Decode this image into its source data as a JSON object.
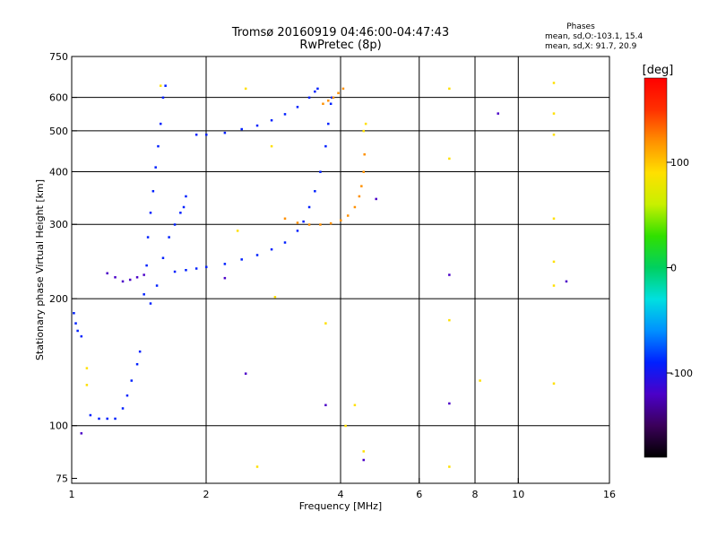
{
  "header": {
    "title_line1": "Tromsø 20160919 04:46:00-04:47:43",
    "title_line2": "RwPretec (8p)",
    "stats_title": "Phases",
    "stats_o": "mean, sd,O:-103.1, 15.4",
    "stats_x": "mean, sd,X:  91.7, 20.9"
  },
  "colorbar": {
    "label": "[deg]",
    "ticks": [
      {
        "value": 100,
        "label": "100"
      },
      {
        "value": 0,
        "label": "0"
      },
      {
        "value": -100,
        "label": "-100"
      }
    ],
    "range": [
      -180,
      180
    ],
    "gradient_stops": [
      "#000000",
      "#3b005a",
      "#4b00c8",
      "#0020ff",
      "#0090ff",
      "#00e0e0",
      "#00d060",
      "#30e000",
      "#c8f000",
      "#ffe000",
      "#ff9000",
      "#ff3000",
      "#ff0000"
    ]
  },
  "chart_data": {
    "type": "scatter",
    "title": "Tromsø 20160919 04:46:00-04:47:43",
    "subtitle": "RwPretec (8p)",
    "xlabel": "Frequency [MHz]",
    "ylabel": "Stationary phase Virtual Height [km]",
    "x_scale": "log",
    "y_scale": "log",
    "xlim": [
      1,
      16
    ],
    "ylim": [
      73,
      750
    ],
    "x_ticks": [
      {
        "value": 1,
        "label": "1"
      },
      {
        "value": 2,
        "label": "2"
      },
      {
        "value": 4,
        "label": "4"
      },
      {
        "value": 6,
        "label": "6"
      },
      {
        "value": 8,
        "label": "8"
      },
      {
        "value": 10,
        "label": "10"
      },
      {
        "value": 16,
        "label": "16"
      }
    ],
    "y_ticks": [
      {
        "value": 75,
        "label": "75"
      },
      {
        "value": 100,
        "label": "100"
      },
      {
        "value": 200,
        "label": "200"
      },
      {
        "value": 300,
        "label": "300"
      },
      {
        "value": 400,
        "label": "400"
      },
      {
        "value": 500,
        "label": "500"
      },
      {
        "value": 600,
        "label": "600"
      },
      {
        "value": 750,
        "label": "750"
      }
    ],
    "x_grid": [
      2,
      4,
      6,
      8,
      10
    ],
    "y_grid": [
      100,
      200,
      300,
      400,
      500,
      600
    ],
    "grid": true,
    "color_scale": "phase in degrees, -180 to 180",
    "series": [
      {
        "values": [
          [
            1.01,
            185
          ],
          [
            1.02,
            175
          ],
          [
            1.03,
            168
          ],
          [
            1.05,
            163
          ],
          [
            1.1,
            106
          ],
          [
            1.15,
            104
          ],
          [
            1.2,
            104
          ],
          [
            1.25,
            104
          ],
          [
            1.3,
            110
          ],
          [
            1.33,
            118
          ],
          [
            1.36,
            128
          ],
          [
            1.4,
            140
          ],
          [
            1.42,
            150
          ]
        ],
        "phase": -95
      },
      {
        "values": [
          [
            1.2,
            230
          ],
          [
            1.25,
            225
          ],
          [
            1.3,
            220
          ],
          [
            1.35,
            222
          ],
          [
            1.4,
            225
          ],
          [
            1.45,
            228
          ]
        ],
        "phase": -110
      },
      {
        "values": [
          [
            1.45,
            205
          ],
          [
            1.47,
            240
          ],
          [
            1.48,
            280
          ],
          [
            1.5,
            320
          ],
          [
            1.52,
            360
          ],
          [
            1.54,
            410
          ],
          [
            1.56,
            460
          ],
          [
            1.58,
            520
          ],
          [
            1.6,
            600
          ],
          [
            1.62,
            640
          ]
        ],
        "phase": -100
      },
      {
        "values": [
          [
            1.5,
            195
          ],
          [
            1.55,
            215
          ],
          [
            1.6,
            250
          ],
          [
            1.65,
            280
          ],
          [
            1.7,
            300
          ],
          [
            1.75,
            320
          ],
          [
            1.78,
            330
          ],
          [
            1.8,
            350
          ]
        ],
        "phase": -95
      },
      {
        "values": [
          [
            1.7,
            232
          ],
          [
            1.8,
            234
          ],
          [
            1.9,
            236
          ],
          [
            2.0,
            238
          ],
          [
            2.2,
            242
          ],
          [
            2.4,
            248
          ],
          [
            2.6,
            254
          ],
          [
            2.8,
            262
          ],
          [
            3.0,
            272
          ],
          [
            3.2,
            290
          ],
          [
            3.3,
            305
          ],
          [
            3.4,
            330
          ],
          [
            3.5,
            360
          ],
          [
            3.6,
            400
          ],
          [
            3.7,
            460
          ],
          [
            3.75,
            520
          ],
          [
            3.8,
            580
          ],
          [
            3.82,
            600
          ]
        ],
        "phase": -105
      },
      {
        "values": [
          [
            1.9,
            490
          ],
          [
            2.0,
            490
          ],
          [
            2.2,
            495
          ],
          [
            2.4,
            505
          ],
          [
            2.6,
            515
          ],
          [
            2.8,
            530
          ],
          [
            3.0,
            548
          ],
          [
            3.2,
            570
          ],
          [
            3.4,
            600
          ],
          [
            3.5,
            620
          ],
          [
            3.55,
            630
          ]
        ],
        "phase": -100
      },
      {
        "values": [
          [
            3.0,
            310
          ],
          [
            3.2,
            303
          ],
          [
            3.4,
            300
          ],
          [
            3.6,
            300
          ],
          [
            3.8,
            302
          ],
          [
            4.0,
            307
          ],
          [
            4.15,
            315
          ],
          [
            4.3,
            330
          ],
          [
            4.4,
            350
          ],
          [
            4.45,
            370
          ],
          [
            4.5,
            400
          ],
          [
            4.52,
            440
          ]
        ],
        "phase": 110
      },
      {
        "values": [
          [
            3.65,
            580
          ],
          [
            3.75,
            590
          ],
          [
            3.85,
            600
          ],
          [
            3.95,
            615
          ],
          [
            4.05,
            630
          ]
        ],
        "phase": 105
      },
      {
        "values": [
          [
            1.58,
            640
          ],
          [
            2.45,
            630
          ],
          [
            2.8,
            460
          ],
          [
            2.85,
            202
          ],
          [
            2.6,
            80
          ],
          [
            3.7,
            175
          ],
          [
            4.1,
            100
          ],
          [
            4.3,
            112
          ],
          [
            4.5,
            87
          ],
          [
            4.55,
            520
          ],
          [
            4.5,
            500
          ],
          [
            7.0,
            630
          ],
          [
            7.0,
            430
          ],
          [
            7.0,
            178
          ],
          [
            7.0,
            80
          ],
          [
            8.2,
            128
          ],
          [
            12.0,
            650
          ],
          [
            12.0,
            550
          ],
          [
            12.0,
            490
          ],
          [
            12.0,
            310
          ],
          [
            12.0,
            245
          ],
          [
            12.0,
            215
          ],
          [
            12.0,
            126
          ],
          [
            1.08,
            137
          ],
          [
            1.08,
            125
          ],
          [
            2.35,
            290
          ]
        ],
        "phase": 95
      },
      {
        "values": [
          [
            2.45,
            133
          ],
          [
            3.7,
            112
          ],
          [
            4.5,
            83
          ],
          [
            4.8,
            345
          ],
          [
            7.0,
            228
          ],
          [
            7.0,
            113
          ],
          [
            9.0,
            550
          ],
          [
            12.8,
            220
          ],
          [
            1.05,
            96
          ],
          [
            2.2,
            224
          ]
        ],
        "phase": -110
      }
    ]
  }
}
